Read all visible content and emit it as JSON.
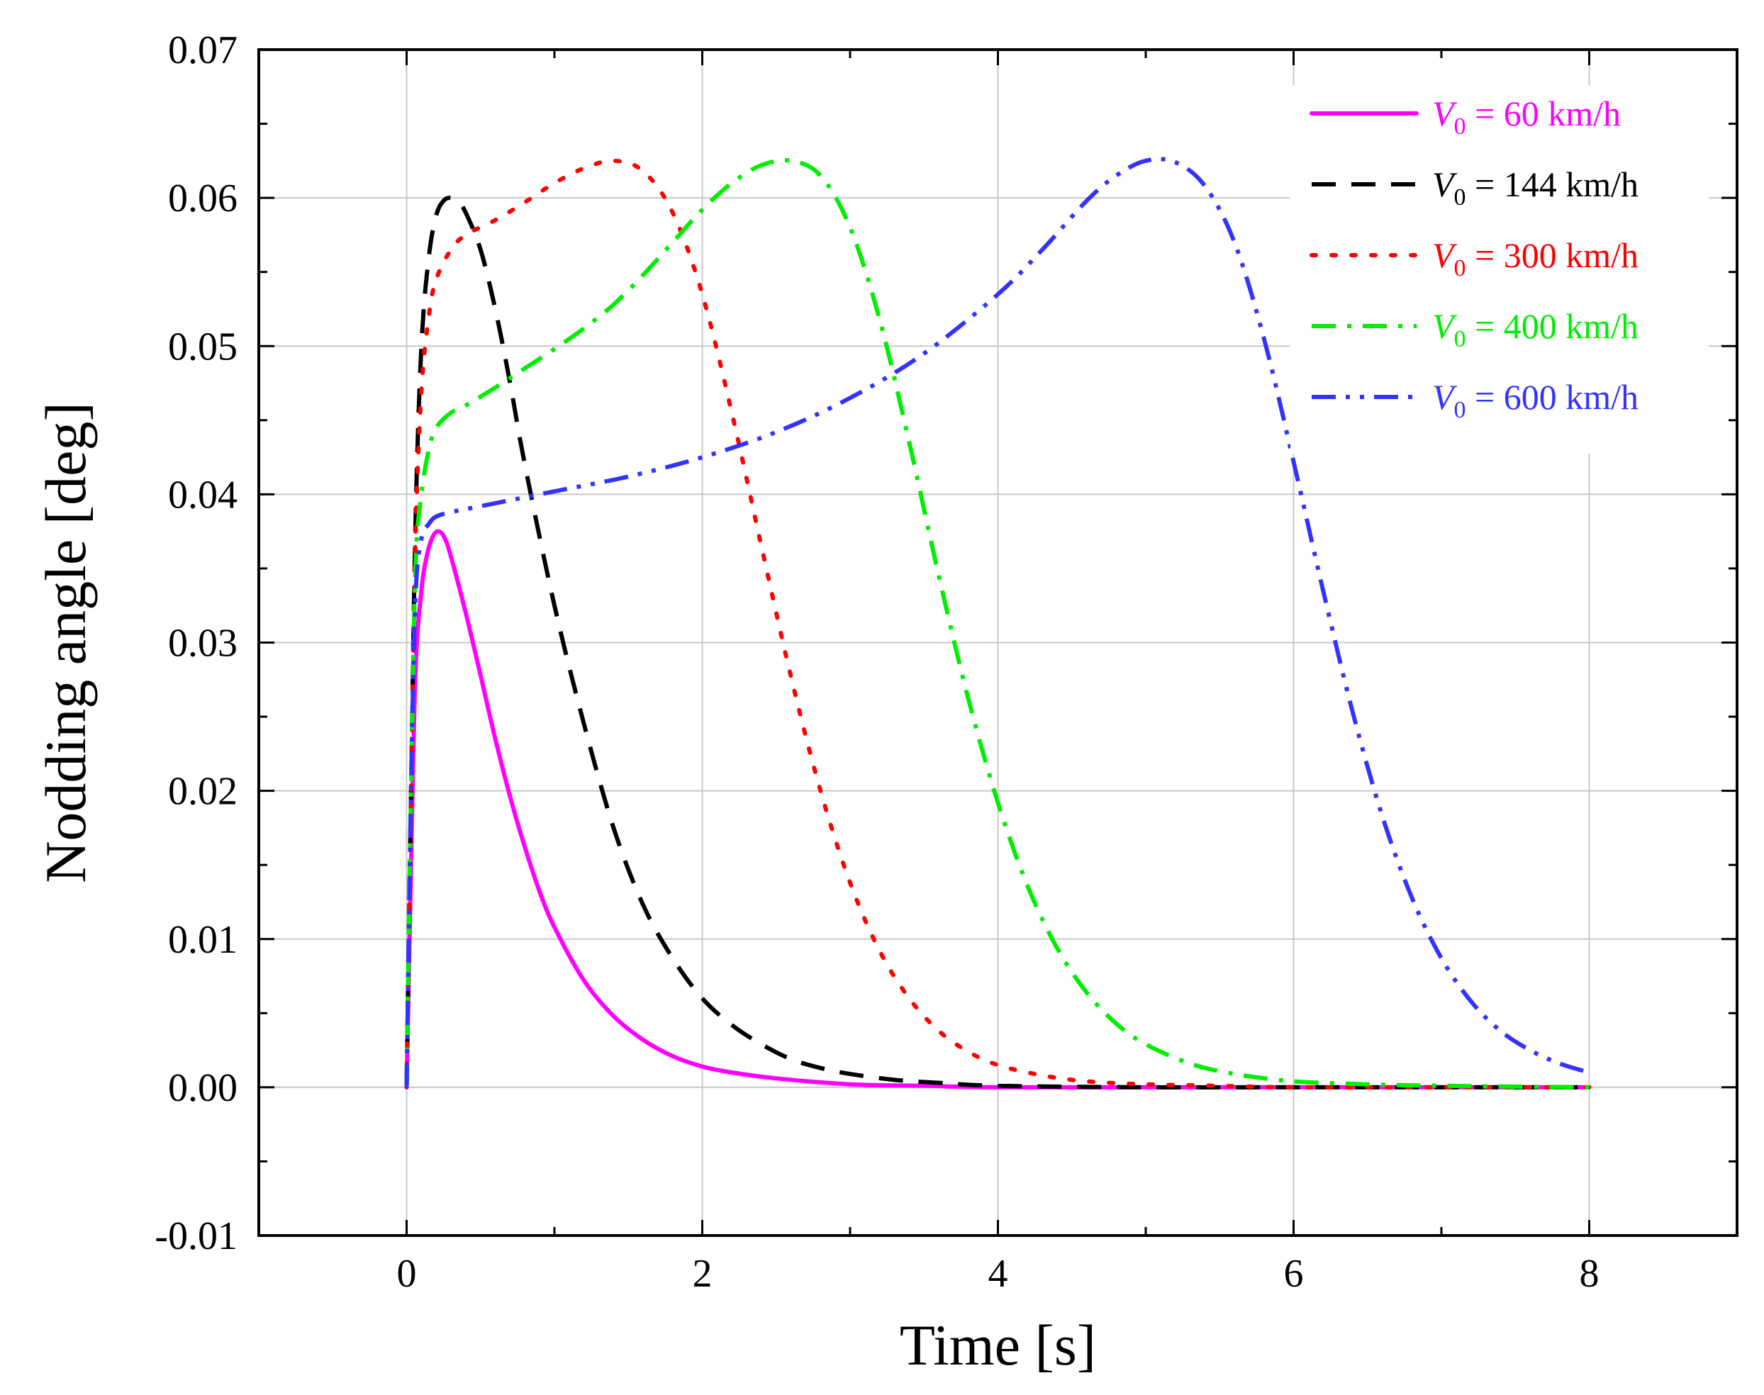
{
  "chart_data": {
    "type": "line",
    "title": "",
    "xlabel": "Time [s]",
    "ylabel": "Nodding angle  [deg]",
    "xlim": [
      -1,
      9
    ],
    "ylim": [
      -0.01,
      0.07
    ],
    "xticks": [
      0,
      2,
      4,
      6,
      8
    ],
    "xtick_labels": [
      "0",
      "2",
      "4",
      "6",
      "8"
    ],
    "yticks": [
      -0.01,
      0.0,
      0.01,
      0.02,
      0.03,
      0.04,
      0.05,
      0.06,
      0.07
    ],
    "ytick_labels": [
      "-0.01",
      "0.00",
      "0.01",
      "0.02",
      "0.03",
      "0.04",
      "0.05",
      "0.06",
      "0.07"
    ],
    "grid": true,
    "legend_position": "top-right",
    "series": [
      {
        "name": "V0 = 60 km/h",
        "legend_var": "V",
        "legend_sub": "0",
        "legend_rest": " = 60 km/h",
        "color": "#ff00ff",
        "dash": "solid",
        "x": [
          0,
          0.03,
          0.06,
          0.1,
          0.14,
          0.18,
          0.22,
          0.26,
          0.3,
          0.4,
          0.5,
          0.6,
          0.7,
          0.8,
          0.9,
          1.0,
          1.2,
          1.4,
          1.6,
          1.8,
          2.0,
          2.2,
          2.5,
          3.0,
          3.5,
          4.0,
          5.0,
          6.0,
          7.0,
          8.0
        ],
        "y": [
          0,
          0.015,
          0.028,
          0.0335,
          0.036,
          0.0372,
          0.0375,
          0.037,
          0.0358,
          0.032,
          0.0278,
          0.0235,
          0.0196,
          0.0162,
          0.0132,
          0.0108,
          0.0072,
          0.0048,
          0.0032,
          0.0021,
          0.0014,
          0.001,
          0.0006,
          0.0002,
          0.0001,
          0.0,
          0.0,
          0.0,
          0.0,
          0.0
        ]
      },
      {
        "name": "V0 = 144 km/h",
        "legend_var": "V",
        "legend_sub": "0",
        "legend_rest": " = 144 km/h",
        "color": "#000000",
        "dash": "dashed",
        "x": [
          0,
          0.03,
          0.06,
          0.1,
          0.15,
          0.2,
          0.25,
          0.3,
          0.35,
          0.4,
          0.5,
          0.6,
          0.7,
          0.8,
          1.0,
          1.2,
          1.4,
          1.6,
          1.8,
          2.0,
          2.2,
          2.4,
          2.6,
          2.8,
          3.0,
          3.3,
          3.6,
          4.0,
          5.0,
          6.0,
          7.0,
          8.0
        ],
        "y": [
          0,
          0.02,
          0.038,
          0.05,
          0.056,
          0.0588,
          0.0598,
          0.06,
          0.0597,
          0.059,
          0.0565,
          0.0525,
          0.0475,
          0.042,
          0.0325,
          0.0245,
          0.0175,
          0.0123,
          0.0087,
          0.006,
          0.0042,
          0.0029,
          0.0019,
          0.0013,
          0.0009,
          0.0005,
          0.0003,
          0.0001,
          0.0,
          0.0,
          0.0,
          0.0
        ]
      },
      {
        "name": "V0 = 300 km/h",
        "legend_var": "V",
        "legend_sub": "0",
        "legend_rest": " = 300 km/h",
        "color": "#ff0000",
        "dash": "dotted",
        "x": [
          0,
          0.03,
          0.06,
          0.1,
          0.15,
          0.2,
          0.3,
          0.4,
          0.6,
          0.8,
          1.0,
          1.2,
          1.4,
          1.6,
          1.8,
          2.0,
          2.2,
          2.4,
          2.6,
          2.8,
          3.0,
          3.2,
          3.4,
          3.6,
          3.8,
          4.0,
          4.3,
          4.6,
          5.0,
          5.5,
          6.0,
          7.0,
          8.0
        ],
        "y": [
          0,
          0.02,
          0.037,
          0.047,
          0.052,
          0.0545,
          0.0565,
          0.0575,
          0.0585,
          0.0597,
          0.061,
          0.062,
          0.0625,
          0.0618,
          0.059,
          0.0535,
          0.0455,
          0.0365,
          0.0277,
          0.02,
          0.0138,
          0.0092,
          0.006,
          0.0038,
          0.0024,
          0.0015,
          0.0008,
          0.0004,
          0.0002,
          0.0001,
          0.0,
          0.0,
          0.0
        ]
      },
      {
        "name": "V0 = 400 km/h",
        "legend_var": "V",
        "legend_sub": "0",
        "legend_rest": " = 400 km/h",
        "color": "#00ee00",
        "dash": "dashdot",
        "x": [
          0,
          0.03,
          0.06,
          0.1,
          0.15,
          0.2,
          0.3,
          0.4,
          0.6,
          0.8,
          1.0,
          1.2,
          1.4,
          1.6,
          1.8,
          2.0,
          2.2,
          2.4,
          2.6,
          2.8,
          3.0,
          3.2,
          3.4,
          3.6,
          3.8,
          4.0,
          4.2,
          4.4,
          4.6,
          4.8,
          5.0,
          5.3,
          5.6,
          6.0,
          6.5,
          7.0,
          8.0
        ],
        "y": [
          0,
          0.02,
          0.035,
          0.04,
          0.043,
          0.0445,
          0.0455,
          0.046,
          0.0472,
          0.0485,
          0.0498,
          0.0512,
          0.0528,
          0.0548,
          0.057,
          0.0592,
          0.061,
          0.0622,
          0.0625,
          0.0615,
          0.058,
          0.0518,
          0.0435,
          0.0345,
          0.0262,
          0.0192,
          0.0136,
          0.0094,
          0.0064,
          0.0043,
          0.0029,
          0.0016,
          0.0009,
          0.0004,
          0.0002,
          0.0001,
          0.0
        ]
      },
      {
        "name": "V0 = 600 km/h",
        "legend_var": "V",
        "legend_sub": "0",
        "legend_rest": " = 600 km/h",
        "color": "#3333ff",
        "dash": "dashdotdot",
        "x": [
          0,
          0.03,
          0.06,
          0.1,
          0.15,
          0.2,
          0.3,
          0.5,
          1.0,
          1.5,
          2.0,
          2.5,
          3.0,
          3.5,
          4.0,
          4.3,
          4.6,
          4.8,
          5.0,
          5.2,
          5.4,
          5.6,
          5.8,
          6.0,
          6.2,
          6.4,
          6.6,
          6.8,
          7.0,
          7.2,
          7.4,
          7.6,
          7.8,
          8.0
        ],
        "y": [
          0,
          0.02,
          0.033,
          0.037,
          0.038,
          0.0385,
          0.0388,
          0.0392,
          0.0402,
          0.0412,
          0.0425,
          0.0442,
          0.0465,
          0.0495,
          0.0535,
          0.0565,
          0.0598,
          0.0615,
          0.0625,
          0.0624,
          0.0608,
          0.057,
          0.0505,
          0.0422,
          0.0335,
          0.0253,
          0.0183,
          0.0128,
          0.0087,
          0.0058,
          0.0038,
          0.0025,
          0.0016,
          0.001
        ]
      }
    ]
  }
}
